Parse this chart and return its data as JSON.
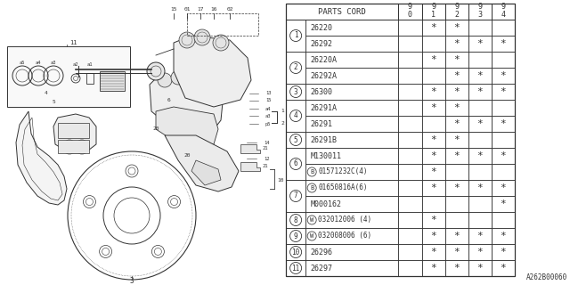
{
  "background_color": "#ffffff",
  "table_header": "PARTS CORD",
  "year_cols": [
    "9\n0",
    "9\n1",
    "9\n2",
    "9\n3",
    "9\n4"
  ],
  "rows": [
    {
      "ref": "1",
      "part": "26220",
      "marks": [
        " ",
        "*",
        "*",
        " ",
        " "
      ]
    },
    {
      "ref": "1",
      "part": "26292",
      "marks": [
        " ",
        " ",
        "*",
        "*",
        "*"
      ]
    },
    {
      "ref": "2",
      "part": "26220A",
      "marks": [
        " ",
        "*",
        "*",
        " ",
        " "
      ]
    },
    {
      "ref": "2",
      "part": "26292A",
      "marks": [
        " ",
        " ",
        "*",
        "*",
        "*"
      ]
    },
    {
      "ref": "3",
      "part": "26300",
      "marks": [
        " ",
        "*",
        "*",
        "*",
        "*"
      ]
    },
    {
      "ref": "4",
      "part": "26291A",
      "marks": [
        " ",
        "*",
        "*",
        " ",
        " "
      ]
    },
    {
      "ref": "4",
      "part": "26291",
      "marks": [
        " ",
        " ",
        "*",
        "*",
        "*"
      ]
    },
    {
      "ref": "5",
      "part": "26291B",
      "marks": [
        " ",
        "*",
        "*",
        " ",
        " "
      ]
    },
    {
      "ref": "6",
      "part": "M130011",
      "marks": [
        " ",
        "*",
        "*",
        "*",
        "*"
      ]
    },
    {
      "ref": "6",
      "part": "B01571232C(4)",
      "marks": [
        " ",
        "*",
        " ",
        " ",
        " "
      ]
    },
    {
      "ref": "7",
      "part": "B01650816A(6)",
      "marks": [
        " ",
        "*",
        "*",
        "*",
        "*"
      ]
    },
    {
      "ref": "7",
      "part": "M000162",
      "marks": [
        " ",
        " ",
        " ",
        " ",
        "*"
      ]
    },
    {
      "ref": "8",
      "part": "W032012006 (4)",
      "marks": [
        " ",
        "*",
        " ",
        " ",
        " "
      ]
    },
    {
      "ref": "9",
      "part": "W032008006 (6)",
      "marks": [
        " ",
        "*",
        "*",
        "*",
        "*"
      ]
    },
    {
      "ref": "10",
      "part": "26296",
      "marks": [
        " ",
        "*",
        "*",
        "*",
        "*"
      ]
    },
    {
      "ref": "11",
      "part": "26297",
      "marks": [
        " ",
        "*",
        "*",
        "*",
        "*"
      ]
    }
  ],
  "watermark": "A262B00060",
  "line_color": "#333333",
  "lw": 0.6
}
